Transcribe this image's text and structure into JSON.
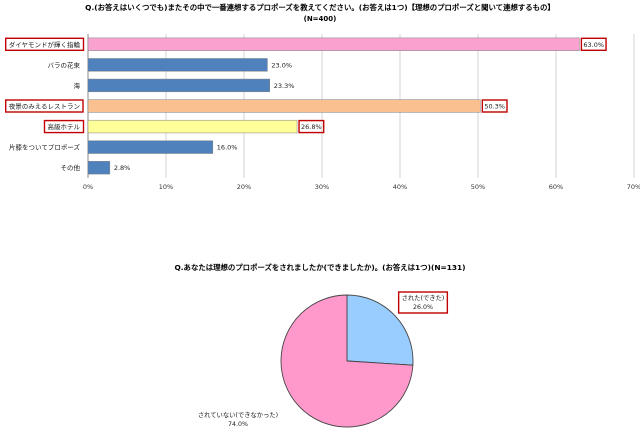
{
  "chart_data": [
    {
      "type": "bar",
      "orientation": "horizontal",
      "title": "Q.(お答えはいくつでも)またその中で一番連想するプロポーズを教えてください。(お答えは1つ)【理想のプロポーズと聞いて連想するもの】",
      "subtitle": "(N=400)",
      "categories": [
        "ダイヤモンドが輝く指輪",
        "バラの花束",
        "海",
        "夜景のみえるレストラン",
        "高級ホテル",
        "片膝をついてプロポーズ",
        "その他"
      ],
      "values": [
        63.0,
        23.0,
        23.3,
        50.3,
        26.8,
        16.0,
        2.8
      ],
      "value_labels": [
        "63.0%",
        "23.0%",
        "23.3%",
        "50.3%",
        "26.8%",
        "16.0%",
        "2.8%"
      ],
      "bar_colors": [
        "#f9a2d0",
        "#4f81bd",
        "#4f81bd",
        "#fac090",
        "#ffff99",
        "#4f81bd",
        "#4f81bd"
      ],
      "highlighted": [
        true,
        false,
        false,
        true,
        true,
        false,
        false
      ],
      "highlight_color": "#c00000",
      "xlim": [
        0,
        70
      ],
      "xticks": [
        0,
        10,
        20,
        30,
        40,
        50,
        60,
        70
      ],
      "xtick_labels": [
        "0%",
        "10%",
        "20%",
        "30%",
        "40%",
        "50%",
        "60%",
        "70%"
      ],
      "grid": "vertical"
    },
    {
      "type": "pie",
      "title": "Q.あなたは理想のプロポーズをされましたか(できましたか)。(お答えは1つ)(N=131)",
      "slices": [
        {
          "label": "された(できた)",
          "value": 26.0,
          "value_label": "26.0%",
          "color": "#99ccff",
          "highlighted": true
        },
        {
          "label": "されていない(できなかった)",
          "value": 74.0,
          "value_label": "74.0%",
          "color": "#ff99cc",
          "highlighted": false
        }
      ],
      "highlight_color": "#c00000"
    }
  ]
}
